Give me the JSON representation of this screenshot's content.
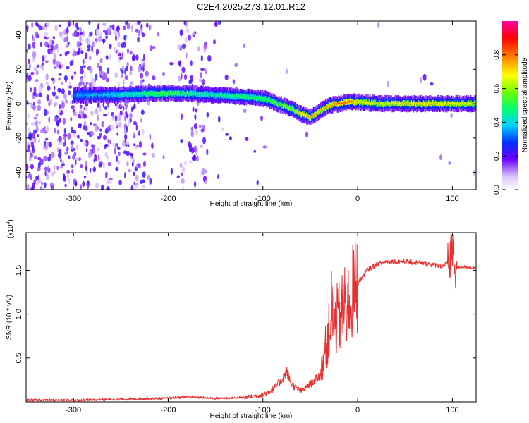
{
  "title": "C2E4.2025.273.12.01.R12",
  "chart_data": [
    {
      "type": "heatmap",
      "xlabel": "Height of straight line (km)",
      "ylabel": "Frequency (Hz)",
      "xlim": [
        -350,
        125
      ],
      "ylim": [
        -50,
        48
      ],
      "xticks": [
        -300,
        -200,
        -100,
        0,
        100
      ],
      "yticks": [
        -40,
        -20,
        0,
        20,
        40
      ],
      "ridge": {
        "x": [
          -300,
          -260,
          -220,
          -200,
          -180,
          -150,
          -120,
          -100,
          -85,
          -70,
          -60,
          -50,
          -40,
          -30,
          -20,
          -10,
          0,
          20,
          50,
          80,
          125
        ],
        "freq": [
          5,
          5,
          6,
          6,
          6,
          5,
          4,
          3,
          0,
          -3,
          -6,
          -8,
          -4,
          -1,
          0,
          1,
          1,
          0,
          0,
          0,
          0
        ],
        "amplitude": [
          0.35,
          0.4,
          0.5,
          0.55,
          0.5,
          0.45,
          0.5,
          0.5,
          0.55,
          0.6,
          0.7,
          0.75,
          0.7,
          0.75,
          0.8,
          0.8,
          0.7,
          0.65,
          0.7,
          0.7,
          0.65
        ]
      },
      "colorbar": {
        "label": "Normalized spectral amplitude",
        "range": [
          0,
          1
        ],
        "ticks": [
          0.0,
          0.2,
          0.4,
          0.6,
          0.8
        ]
      }
    },
    {
      "type": "line",
      "xlabel": "Height of straight line (km)",
      "ylabel": "SNR (10 * v/v)",
      "multiplier": "(x10",
      "multiplier_exp": "4",
      "multiplier_close": ")",
      "xlim": [
        -350,
        125
      ],
      "ylim": [
        0,
        1.93
      ],
      "xticks": [
        -300,
        -200,
        -100,
        0,
        100
      ],
      "yticks": [
        0.5,
        1.0,
        1.5
      ],
      "ytick_labels": [
        "0.5",
        "1.0",
        "1.5"
      ],
      "color": "#e83030",
      "series": [
        {
          "name": "SNR",
          "x": [
            -350,
            -300,
            -250,
            -200,
            -180,
            -150,
            -120,
            -100,
            -90,
            -80,
            -75,
            -70,
            -60,
            -50,
            -40,
            -35,
            -30,
            -28,
            -25,
            -20,
            -15,
            -10,
            -5,
            0,
            10,
            20,
            30,
            50,
            70,
            90,
            98,
            100,
            102,
            110,
            125
          ],
          "y": [
            0.02,
            0.02,
            0.03,
            0.04,
            0.06,
            0.04,
            0.05,
            0.08,
            0.14,
            0.25,
            0.35,
            0.2,
            0.12,
            0.2,
            0.3,
            0.55,
            0.8,
            1.1,
            0.9,
            0.95,
            1.05,
            1.1,
            1.25,
            1.35,
            1.5,
            1.57,
            1.6,
            1.6,
            1.58,
            1.55,
            1.6,
            1.75,
            1.52,
            1.54,
            1.53
          ]
        }
      ]
    }
  ]
}
